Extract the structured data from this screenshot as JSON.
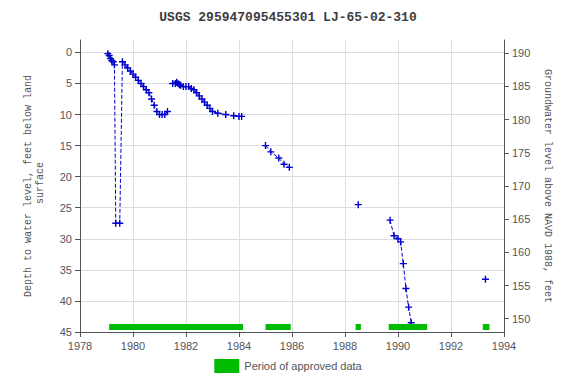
{
  "chart_data": {
    "type": "line",
    "title": "USGS 295947095455301 LJ-65-02-310",
    "ylabel": "Depth to water level, feet below land\n surface",
    "y2label": "Groundwater level above NAVD 1988, feet",
    "xlim": [
      1978,
      1994
    ],
    "xticks": [
      1978,
      1980,
      1982,
      1984,
      1986,
      1988,
      1990,
      1992,
      1994
    ],
    "ylim": [
      45,
      -2
    ],
    "yticks": [
      0,
      5,
      10,
      15,
      20,
      25,
      30,
      35,
      40,
      45
    ],
    "y2lim": [
      148,
      192
    ],
    "y2ticks": [
      190,
      185,
      180,
      175,
      170,
      165,
      160,
      155,
      150
    ],
    "grid": true,
    "legend": "bottom",
    "series": [
      {
        "color": "#0000cc",
        "marker": "+",
        "line_style": "dashed",
        "x": [
          1979.05,
          1979.1,
          1979.15,
          1979.2,
          1979.25,
          1979.3,
          1979.35,
          1979.5,
          1979.6,
          1979.7,
          1979.8,
          1979.9,
          1980.0,
          1980.1,
          1980.2,
          1980.3,
          1980.4,
          1980.5,
          1980.6,
          1980.7,
          1980.8,
          1980.9,
          1981.0,
          1981.1,
          1981.2,
          1981.3
        ],
        "values": [
          0.2,
          0.5,
          1.0,
          1.3,
          1.5,
          2.0,
          27.5,
          27.5,
          1.5,
          2.0,
          2.5,
          3.0,
          3.5,
          4.0,
          4.5,
          5.0,
          5.5,
          6.0,
          6.5,
          7.5,
          8.5,
          9.5,
          10.0,
          10.0,
          10.0,
          9.5
        ]
      },
      {
        "color": "#0000cc",
        "marker": "+",
        "line_style": "dashed",
        "x": [
          1981.5,
          1981.6,
          1981.65,
          1981.7,
          1981.75,
          1981.8,
          1981.9,
          1982.0,
          1982.1,
          1982.2,
          1982.3,
          1982.4,
          1982.5,
          1982.6,
          1982.7,
          1982.8,
          1982.9,
          1983.0,
          1983.2,
          1983.5,
          1983.8,
          1984.0,
          1984.1
        ],
        "values": [
          5.0,
          5.0,
          4.8,
          5.0,
          5.2,
          5.3,
          5.5,
          5.5,
          5.5,
          5.8,
          6.0,
          6.5,
          7.0,
          7.5,
          8.0,
          8.5,
          9.0,
          9.5,
          9.8,
          10.0,
          10.2,
          10.3,
          10.3
        ]
      },
      {
        "color": "#0000cc",
        "marker": "+",
        "line_style": "dashed",
        "x": [
          1985.0,
          1985.2,
          1985.5,
          1985.7,
          1985.9
        ],
        "values": [
          15.0,
          16.0,
          17.0,
          18.0,
          18.5
        ]
      },
      {
        "color": "#0000cc",
        "marker": "+",
        "line_style": "dashed",
        "x": [
          1988.5
        ],
        "values": [
          24.5
        ]
      },
      {
        "color": "#0000cc",
        "marker": "+",
        "line_style": "dashed",
        "x": [
          1989.7,
          1989.85,
          1990.0,
          1990.1,
          1990.2,
          1990.3,
          1990.4,
          1990.5
        ],
        "values": [
          27.0,
          29.5,
          30.0,
          30.5,
          34.0,
          38.0,
          41.0,
          43.5
        ]
      },
      {
        "color": "#0000cc",
        "marker": "+",
        "line_style": "dashed",
        "x": [
          1993.3
        ],
        "values": [
          36.5
        ]
      },
      {
        "name": "Period of approved data",
        "type": "span",
        "color": "#00bb00",
        "ranges": [
          [
            1979.1,
            1984.15
          ],
          [
            1985.0,
            1985.95
          ],
          [
            1988.4,
            1988.6
          ],
          [
            1989.65,
            1991.1
          ],
          [
            1993.2,
            1993.45
          ]
        ]
      }
    ]
  }
}
